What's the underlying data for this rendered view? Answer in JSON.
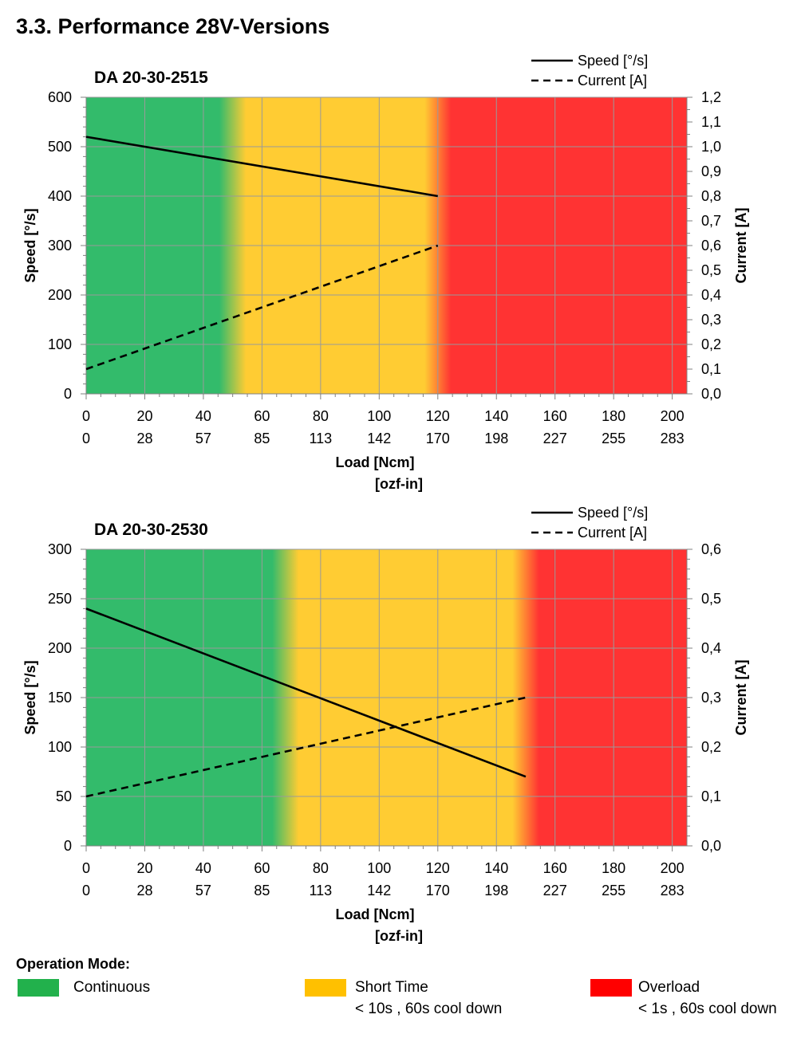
{
  "heading": "3.3. Performance 28V-Versions",
  "colors": {
    "continuous": "#33bb6b",
    "short_time": "#ffcc33",
    "overload": "#ff3333",
    "swatch_continuous": "#22b14c",
    "swatch_short_time": "#ffc000",
    "swatch_overload": "#ff0000",
    "grid": "#9a9a9a"
  },
  "chart_data": [
    {
      "type": "line",
      "title": "DA 20-30-2515",
      "xlabel": "Load [Ncm]",
      "xlabel2": "[ozf-in]",
      "ylabel": "Speed  [°/s]",
      "y2label": "Current  [A]",
      "xlim": [
        0,
        205
      ],
      "ylim": [
        0,
        600
      ],
      "y2lim": [
        0,
        1.2
      ],
      "x_ticks": [
        0,
        20,
        40,
        60,
        80,
        100,
        120,
        140,
        160,
        180,
        200
      ],
      "x_tick_labels": [
        "0",
        "20",
        "40",
        "60",
        "80",
        "100",
        "120",
        "140",
        "160",
        "180",
        "200"
      ],
      "x2_tick_labels": [
        "0",
        "28",
        "57",
        "85",
        "113",
        "142",
        "170",
        "198",
        "227",
        "255",
        "283"
      ],
      "y_ticks": [
        0,
        100,
        200,
        300,
        400,
        500,
        600
      ],
      "y_tick_labels": [
        "0",
        "100",
        "200",
        "300",
        "400",
        "500",
        "600"
      ],
      "y2_ticks": [
        0,
        0.1,
        0.2,
        0.3,
        0.4,
        0.5,
        0.6,
        0.7,
        0.8,
        0.9,
        1.0,
        1.1,
        1.2
      ],
      "y2_tick_labels": [
        "0,0",
        "0,1",
        "0,2",
        "0,3",
        "0,4",
        "0,5",
        "0,6",
        "0,7",
        "0,8",
        "0,9",
        "1,0",
        "1,1",
        "1,2"
      ],
      "zones": [
        {
          "mode": "continuous",
          "from": 0,
          "to": 50
        },
        {
          "mode": "short_time",
          "from": 50,
          "to": 120
        },
        {
          "mode": "overload",
          "from": 120,
          "to": 205
        }
      ],
      "grid": true,
      "legend_position": "top-right",
      "series": [
        {
          "name": "Speed [°/s]",
          "axis": "y",
          "style": "solid",
          "x": [
            0,
            120
          ],
          "y": [
            520,
            400
          ]
        },
        {
          "name": "Current [A]",
          "axis": "y2",
          "style": "dashed",
          "x": [
            0,
            120
          ],
          "y": [
            0.1,
            0.6
          ]
        }
      ]
    },
    {
      "type": "line",
      "title": "DA 20-30-2530",
      "xlabel": "Load [Ncm]",
      "xlabel2": "[ozf-in]",
      "ylabel": "Speed  [°/s]",
      "y2label": "Current  [A]",
      "xlim": [
        0,
        205
      ],
      "ylim": [
        0,
        300
      ],
      "y2lim": [
        0,
        0.6
      ],
      "x_ticks": [
        0,
        20,
        40,
        60,
        80,
        100,
        120,
        140,
        160,
        180,
        200
      ],
      "x_tick_labels": [
        "0",
        "20",
        "40",
        "60",
        "80",
        "100",
        "120",
        "140",
        "160",
        "180",
        "200"
      ],
      "x2_tick_labels": [
        "0",
        "28",
        "57",
        "85",
        "113",
        "142",
        "170",
        "198",
        "227",
        "255",
        "283"
      ],
      "y_ticks": [
        0,
        50,
        100,
        150,
        200,
        250,
        300
      ],
      "y_tick_labels": [
        "0",
        "50",
        "100",
        "150",
        "200",
        "250",
        "300"
      ],
      "y2_ticks": [
        0,
        0.1,
        0.2,
        0.3,
        0.4,
        0.5,
        0.6
      ],
      "y2_tick_labels": [
        "0,0",
        "0,1",
        "0,2",
        "0,3",
        "0,4",
        "0,5",
        "0,6"
      ],
      "zones": [
        {
          "mode": "continuous",
          "from": 0,
          "to": 68
        },
        {
          "mode": "short_time",
          "from": 68,
          "to": 150
        },
        {
          "mode": "overload",
          "from": 150,
          "to": 205
        }
      ],
      "grid": true,
      "legend_position": "top-right",
      "series": [
        {
          "name": "Speed [°/s]",
          "axis": "y",
          "style": "solid",
          "x": [
            0,
            150
          ],
          "y": [
            240,
            70
          ]
        },
        {
          "name": "Current [A]",
          "axis": "y2",
          "style": "dashed",
          "x": [
            0,
            150
          ],
          "y": [
            0.1,
            0.3
          ]
        }
      ]
    }
  ],
  "operation_mode": {
    "title": "Operation Mode:",
    "items": [
      {
        "mode": "continuous",
        "label": "Continuous",
        "sublabel": ""
      },
      {
        "mode": "short_time",
        "label": "Short Time",
        "sublabel": "< 10s , 60s cool down"
      },
      {
        "mode": "overload",
        "label": "Overload",
        "sublabel": "< 1s , 60s cool down"
      }
    ]
  }
}
